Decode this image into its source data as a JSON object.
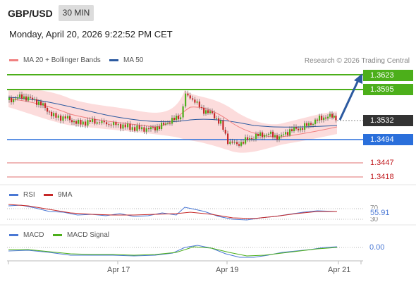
{
  "header": {
    "symbol": "GBP/USD",
    "interval": "30 MIN",
    "datetime": "Monday, April 20, 2026 9:22:52 PM CET"
  },
  "legend": {
    "ma20": "MA 20 + Bollinger Bands",
    "ma50": "MA 50",
    "credit": "Research © 2026 Trading Central"
  },
  "colors": {
    "resistance": "#4caf1a",
    "support": "#2a6fdb",
    "pivot": "#d81b1b",
    "current": "#333333",
    "arrow": "#2c5aa0",
    "bull": "#4caf1a",
    "bear": "#c62828",
    "rsi": "#4a78d4",
    "rsi_ma": "#c62828",
    "macd": "#4a78d4",
    "macd_signal": "#4caf1a"
  },
  "levels": {
    "target_1": "1.3623",
    "target_2": "1.3595",
    "current": "1.3532",
    "support": "1.3494",
    "pivot_1": "1.3447",
    "pivot_2": "1.3418"
  },
  "rsi": {
    "label": "RSI",
    "ma_label": "9MA",
    "value": "55.91",
    "upper": "70",
    "lower": "30"
  },
  "macd": {
    "label": "MACD",
    "signal_label": "MACD Signal",
    "value": "0.00"
  },
  "x_axis": {
    "dates": [
      "Apr 17",
      "Apr 19",
      "Apr 21"
    ]
  },
  "chart_data": {
    "type": "candlestick",
    "instrument": "GBP/USD",
    "timeframe": "30 MIN",
    "levels": [
      1.3623,
      1.3595,
      1.3532,
      1.3494,
      1.3447,
      1.3418
    ],
    "last_price": 1.3532,
    "x_ticks": [
      "Apr 17",
      "Apr 19",
      "Apr 21"
    ],
    "rsi_last": 55.91,
    "macd_last": 0.0
  }
}
